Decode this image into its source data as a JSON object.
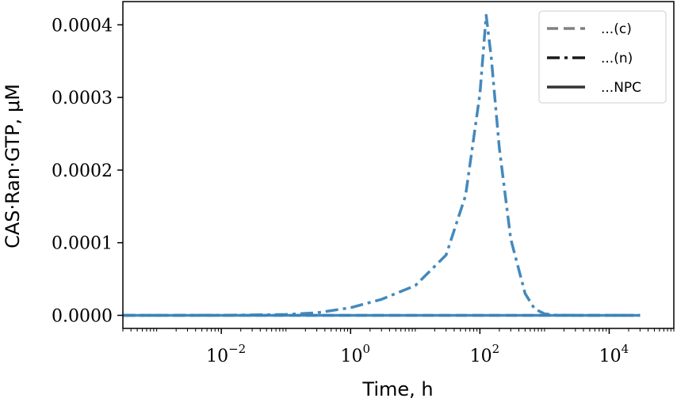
{
  "chart_data": {
    "type": "line",
    "title": "",
    "xlabel": "Time, h",
    "ylabel": "CAS·Ran·GTP, μM",
    "xscale": "log",
    "xlim": [
      0.0003,
      100000
    ],
    "ylim": [
      -1.8e-05,
      0.000432
    ],
    "grid": false,
    "legend_position": "top-right",
    "xticks": [
      {
        "value": 0.01,
        "base": "10",
        "exp": "−2"
      },
      {
        "value": 1,
        "base": "10",
        "exp": "0"
      },
      {
        "value": 100,
        "base": "10",
        "exp": "2"
      },
      {
        "value": 10000,
        "base": "10",
        "exp": "4"
      }
    ],
    "yticks": [
      {
        "value": 0,
        "label": "0.0000"
      },
      {
        "value": 0.0001,
        "label": "0.0001"
      },
      {
        "value": 0.0002,
        "label": "0.0002"
      },
      {
        "value": 0.0003,
        "label": "0.0003"
      },
      {
        "value": 0.0004,
        "label": "0.0004"
      }
    ],
    "series": [
      {
        "name": "...(c)",
        "style": "dashed",
        "color": "#3a83b8",
        "legend_color": "#808080",
        "x": [
          0.0003,
          0.001,
          0.01,
          0.1,
          1,
          10,
          100,
          1000,
          10000,
          30000
        ],
        "y": [
          0,
          0,
          0,
          0,
          0,
          0,
          0,
          0,
          0,
          0
        ]
      },
      {
        "name": "...(n)",
        "style": "dashdot",
        "color": "#3a83b8",
        "legend_color": "#1a1a1a",
        "x": [
          0.0003,
          0.01,
          0.1,
          0.3,
          1,
          3,
          10,
          30,
          60,
          100,
          125,
          150,
          200,
          300,
          500,
          700,
          1000,
          1500,
          3000,
          10000,
          30000
        ],
        "y": [
          0,
          1e-07,
          1.2e-06,
          3.5e-06,
          1.05e-05,
          2.2e-05,
          4.1e-05,
          8.3e-05,
          0.000165,
          0.000305,
          0.000413,
          0.000355,
          0.00023,
          0.000105,
          3e-05,
          9e-06,
          2e-06,
          3e-07,
          0,
          0,
          0
        ]
      },
      {
        "name": "...NPC",
        "style": "solid",
        "color": "#3a83b8",
        "legend_color": "#333333",
        "x": [
          0.0003,
          0.001,
          0.01,
          0.1,
          1,
          10,
          100,
          1000,
          10000,
          30000
        ],
        "y": [
          0,
          0,
          0,
          0,
          0,
          0,
          0,
          0,
          0,
          0
        ]
      }
    ]
  }
}
